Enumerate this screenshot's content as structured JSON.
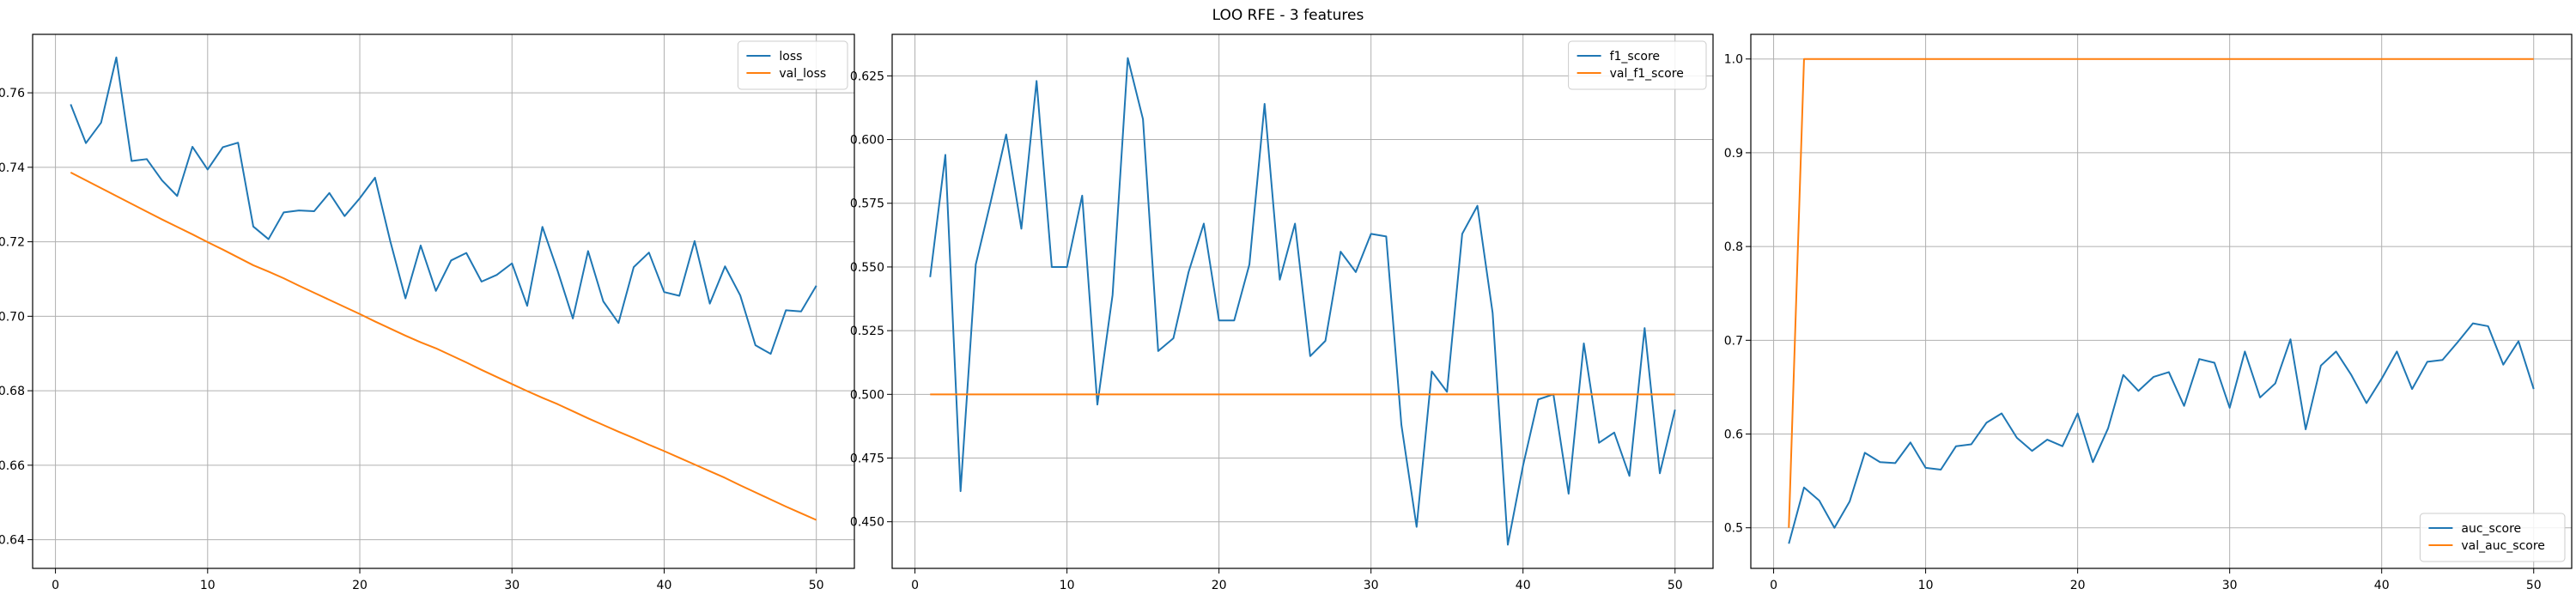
{
  "figure": {
    "title": "LOO RFE - 3 features"
  },
  "chart_data": [
    {
      "type": "line",
      "xlim": [
        -1.5,
        52.5
      ],
      "ylim": [
        0.6323,
        0.7757
      ],
      "x_ticks": [
        0,
        10,
        20,
        30,
        40,
        50
      ],
      "y_ticks": [
        0.64,
        0.66,
        0.68,
        0.7,
        0.72,
        0.74,
        0.76
      ],
      "y_tick_labels": [
        "0.64",
        "0.66",
        "0.68",
        "0.70",
        "0.72",
        "0.74",
        "0.76"
      ],
      "grid": true,
      "legend_position": "top-right",
      "series": [
        {
          "name": "loss",
          "color": "#1f77b4",
          "x_start": 1,
          "values": [
            0.7569,
            0.7465,
            0.752,
            0.7695,
            0.7417,
            0.7422,
            0.7365,
            0.7323,
            0.7455,
            0.7394,
            0.7454,
            0.7466,
            0.7241,
            0.7207,
            0.7279,
            0.7284,
            0.7282,
            0.7331,
            0.7269,
            0.7317,
            0.7372,
            0.7202,
            0.7048,
            0.719,
            0.7068,
            0.715,
            0.717,
            0.7093,
            0.7111,
            0.7142,
            0.7028,
            0.724,
            0.7122,
            0.6994,
            0.7175,
            0.704,
            0.6982,
            0.7132,
            0.7171,
            0.7065,
            0.7055,
            0.7202,
            0.7034,
            0.7134,
            0.7056,
            0.6922,
            0.6899,
            0.7016,
            0.7013,
            0.7082
          ]
        },
        {
          "name": "val_loss",
          "color": "#ff7f0e",
          "x_start": 1,
          "values": [
            0.7386,
            0.7365,
            0.7344,
            0.7323,
            0.7302,
            0.7281,
            0.726,
            0.724,
            0.722,
            0.7199,
            0.7179,
            0.7158,
            0.7137,
            0.712,
            0.7102,
            0.7082,
            0.7063,
            0.7044,
            0.7025,
            0.7006,
            0.6986,
            0.6967,
            0.6948,
            0.693,
            0.6914,
            0.6895,
            0.6876,
            0.6856,
            0.6837,
            0.6818,
            0.6799,
            0.6781,
            0.6764,
            0.6745,
            0.6726,
            0.6708,
            0.669,
            0.6673,
            0.6655,
            0.6638,
            0.662,
            0.6602,
            0.6584,
            0.6566,
            0.6546,
            0.6527,
            0.6508,
            0.6489,
            0.6471,
            0.6453
          ]
        }
      ]
    },
    {
      "type": "line",
      "xlim": [
        -1.5,
        52.5
      ],
      "ylim": [
        0.4317,
        0.6413
      ],
      "x_ticks": [
        0,
        10,
        20,
        30,
        40,
        50
      ],
      "y_ticks": [
        0.45,
        0.475,
        0.5,
        0.525,
        0.55,
        0.575,
        0.6,
        0.625
      ],
      "y_tick_labels": [
        "0.450",
        "0.475",
        "0.500",
        "0.525",
        "0.550",
        "0.575",
        "0.600",
        "0.625"
      ],
      "grid": true,
      "legend_position": "top-right",
      "series": [
        {
          "name": "f1_score",
          "color": "#1f77b4",
          "x_start": 1,
          "values": [
            0.546,
            0.594,
            0.462,
            0.551,
            0.576,
            0.602,
            0.565,
            0.623,
            0.55,
            0.55,
            0.578,
            0.496,
            0.539,
            0.632,
            0.608,
            0.517,
            0.522,
            0.548,
            0.567,
            0.529,
            0.529,
            0.551,
            0.614,
            0.545,
            0.567,
            0.515,
            0.521,
            0.556,
            0.548,
            0.563,
            0.562,
            0.488,
            0.448,
            0.509,
            0.501,
            0.563,
            0.574,
            0.532,
            0.441,
            0.472,
            0.498,
            0.5,
            0.461,
            0.52,
            0.481,
            0.485,
            0.468,
            0.526,
            0.469,
            0.494
          ]
        },
        {
          "name": "val_f1_score",
          "color": "#ff7f0e",
          "x_start": 1,
          "values": [
            0.5,
            0.5,
            0.5,
            0.5,
            0.5,
            0.5,
            0.5,
            0.5,
            0.5,
            0.5,
            0.5,
            0.5,
            0.5,
            0.5,
            0.5,
            0.5,
            0.5,
            0.5,
            0.5,
            0.5,
            0.5,
            0.5,
            0.5,
            0.5,
            0.5,
            0.5,
            0.5,
            0.5,
            0.5,
            0.5,
            0.5,
            0.5,
            0.5,
            0.5,
            0.5,
            0.5,
            0.5,
            0.5,
            0.5,
            0.5,
            0.5,
            0.5,
            0.5,
            0.5,
            0.5,
            0.5,
            0.5,
            0.5,
            0.5,
            0.5
          ]
        }
      ]
    },
    {
      "type": "line",
      "xlim": [
        -1.5,
        52.5
      ],
      "ylim": [
        0.4567,
        1.0263
      ],
      "x_ticks": [
        0,
        10,
        20,
        30,
        40,
        50
      ],
      "y_ticks": [
        0.5,
        0.6,
        0.7,
        0.8,
        0.9,
        1.0
      ],
      "y_tick_labels": [
        "0.5",
        "0.6",
        "0.7",
        "0.8",
        "0.9",
        "1.0"
      ],
      "grid": true,
      "legend_position": "bottom-right",
      "series": [
        {
          "name": "auc_score",
          "color": "#1f77b4",
          "x_start": 1,
          "values": [
            0.483,
            0.543,
            0.529,
            0.5,
            0.528,
            0.58,
            0.57,
            0.569,
            0.591,
            0.564,
            0.562,
            0.587,
            0.589,
            0.612,
            0.622,
            0.596,
            0.582,
            0.594,
            0.587,
            0.622,
            0.57,
            0.606,
            0.663,
            0.646,
            0.661,
            0.666,
            0.63,
            0.68,
            0.676,
            0.628,
            0.688,
            0.639,
            0.654,
            0.701,
            0.605,
            0.673,
            0.688,
            0.663,
            0.633,
            0.659,
            0.688,
            0.648,
            0.677,
            0.679,
            0.698,
            0.718,
            0.715,
            0.674,
            0.699,
            0.648
          ]
        },
        {
          "name": "val_auc_score",
          "color": "#ff7f0e",
          "x_start": 1,
          "values": [
            0.5,
            1.0,
            1.0,
            1.0,
            1.0,
            1.0,
            1.0,
            1.0,
            1.0,
            1.0,
            1.0,
            1.0,
            1.0,
            1.0,
            1.0,
            1.0,
            1.0,
            1.0,
            1.0,
            1.0,
            1.0,
            1.0,
            1.0,
            1.0,
            1.0,
            1.0,
            1.0,
            1.0,
            1.0,
            1.0,
            1.0,
            1.0,
            1.0,
            1.0,
            1.0,
            1.0,
            1.0,
            1.0,
            1.0,
            1.0,
            1.0,
            1.0,
            1.0,
            1.0,
            1.0,
            1.0,
            1.0,
            1.0,
            1.0,
            1.0
          ]
        }
      ]
    }
  ]
}
